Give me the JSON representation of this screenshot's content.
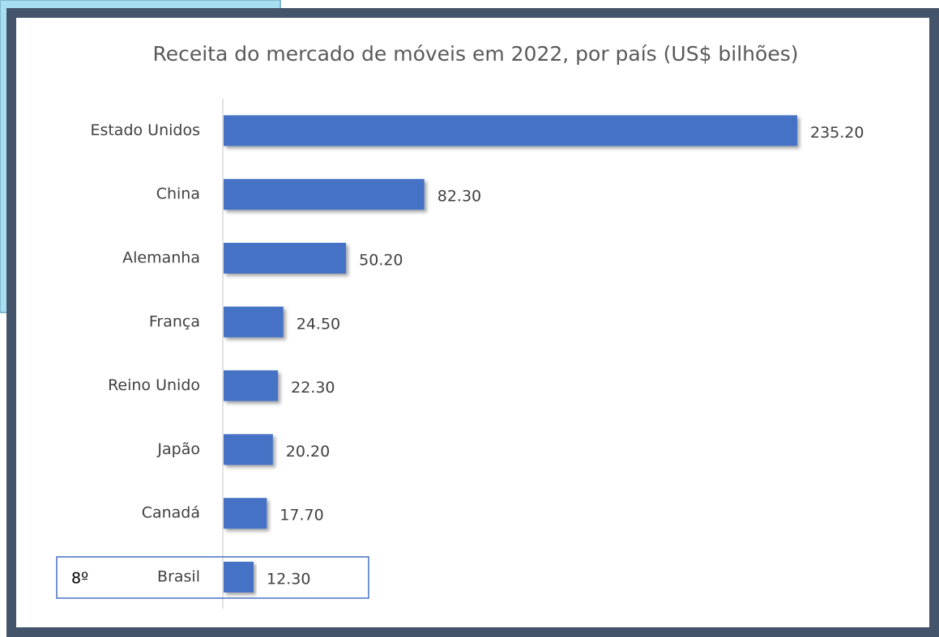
{
  "chart_data": {
    "type": "bar",
    "orientation": "horizontal",
    "title": "Receita do mercado de móveis em 2022, por país (US$ bilhões)",
    "categories": [
      "Estado Unidos",
      "China",
      "Alemanha",
      "França",
      "Reino Unido",
      "Japão",
      "Canadá",
      "Brasil"
    ],
    "values": [
      235.2,
      82.3,
      50.2,
      24.5,
      22.3,
      20.2,
      17.7,
      12.3
    ],
    "value_labels": [
      "235.20",
      "82.30",
      "50.20",
      "24.50",
      "22.30",
      "20.20",
      "17.70",
      "12.30"
    ],
    "color": "#4472c4",
    "annotation": "8º"
  }
}
